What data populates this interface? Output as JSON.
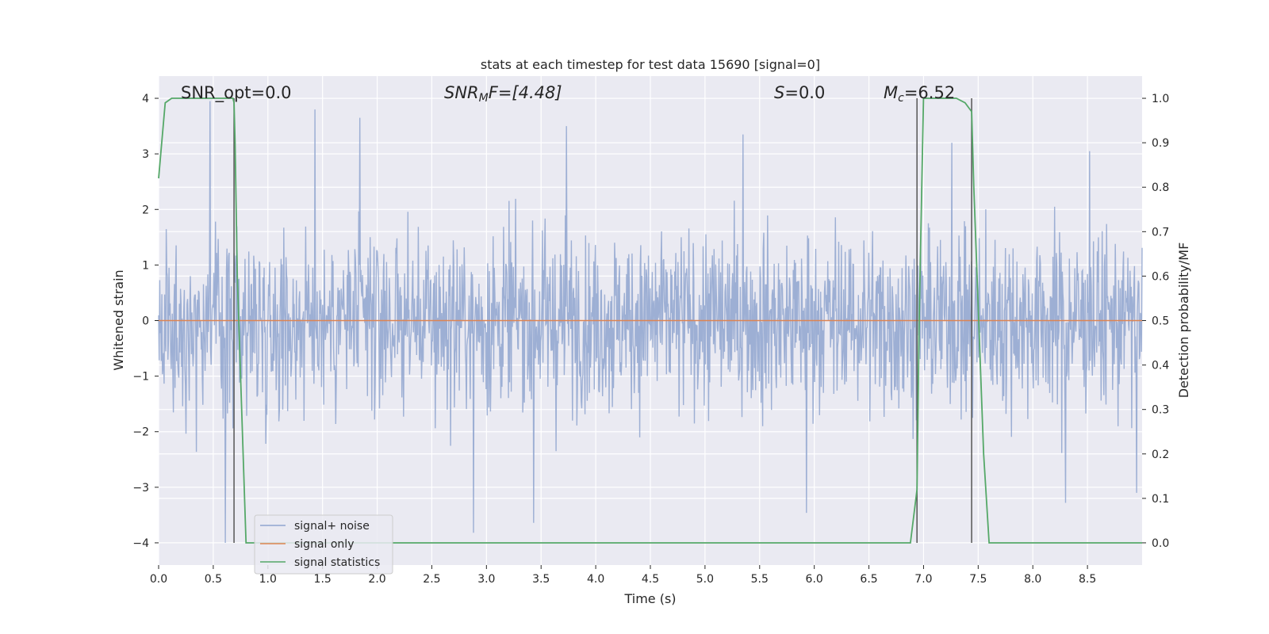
{
  "chart_data": {
    "type": "line",
    "title": "stats at each timestep for test data 15690 [signal=0]",
    "xlabel": "Time (s)",
    "ylabel": "Whitened strain",
    "y2label": "Detection probability/MF",
    "xlim": [
      0.0,
      9.0
    ],
    "ylim": [
      -4.4,
      4.4
    ],
    "y2lim": [
      -0.05,
      1.05
    ],
    "xticks": [
      "0.0",
      "0.5",
      "1.0",
      "1.5",
      "2.0",
      "2.5",
      "3.0",
      "3.5",
      "4.0",
      "4.5",
      "5.0",
      "5.5",
      "6.0",
      "6.5",
      "7.0",
      "7.5",
      "8.0",
      "8.5"
    ],
    "yticks": [
      "4",
      "3",
      "2",
      "1",
      "0",
      "−1",
      "−2",
      "−3",
      "−4"
    ],
    "y2ticks": [
      "1.0",
      "0.9",
      "0.8",
      "0.7",
      "0.6",
      "0.5",
      "0.4",
      "0.3",
      "0.2",
      "0.1",
      "0.0"
    ],
    "grid": true,
    "background": "#eaeaf2",
    "annotations": {
      "snr_opt": "SNR_opt=0.0",
      "snr_mf_base": "SNR",
      "snr_mf_sub": "M",
      "snr_mf_rest": "F=[4.48]",
      "s_italic": "S",
      "s_rest": "=0.0",
      "mc_italic": "M",
      "mc_sub": "c",
      "mc_rest": "=6.52"
    },
    "legend": {
      "placement": "lower-left",
      "entries": [
        {
          "label": "signal+ noise",
          "color": "#8fa4cf"
        },
        {
          "label": "signal only",
          "color": "#dd8452"
        },
        {
          "label": "signal statistics",
          "color": "#55a868"
        }
      ]
    },
    "vertical_markers_s": [
      0.69,
      6.94,
      7.44
    ],
    "series": [
      {
        "name": "signal statistics",
        "color": "#55a868",
        "x": [
          0.0,
          0.06,
          0.12,
          0.2,
          0.4,
          0.6,
          0.68,
          0.69,
          0.7,
          0.72,
          0.8,
          1.0,
          3.0,
          5.0,
          6.5,
          6.88,
          6.94,
          6.96,
          7.0,
          7.1,
          7.3,
          7.38,
          7.44,
          7.46,
          7.55,
          7.6,
          8.0,
          9.0
        ],
        "y": [
          0.82,
          0.99,
          1.0,
          1.0,
          1.0,
          1.0,
          1.0,
          0.99,
          0.9,
          0.6,
          0.0,
          0.0,
          0.0,
          0.0,
          0.0,
          0.0,
          0.12,
          0.5,
          1.0,
          1.0,
          1.0,
          0.99,
          0.97,
          0.8,
          0.2,
          0.0,
          0.0,
          0.0
        ]
      },
      {
        "name": "signal only",
        "color": "#dd8452",
        "x": [
          0.0,
          9.0
        ],
        "y": [
          0.0,
          0.0
        ]
      },
      {
        "name": "signal+ noise",
        "color": "#8fa4cf",
        "sample_count": 1800,
        "typical_abs_max": 2.0,
        "peak_max": 3.95,
        "peak_min": -4.0,
        "note_peaks_x": [
          0.47,
          1.43,
          1.84,
          3.73,
          5.35,
          7.26,
          8.52
        ],
        "note_troughs_x": [
          0.61,
          2.88,
          3.43,
          5.93,
          8.3,
          8.95
        ]
      }
    ]
  }
}
